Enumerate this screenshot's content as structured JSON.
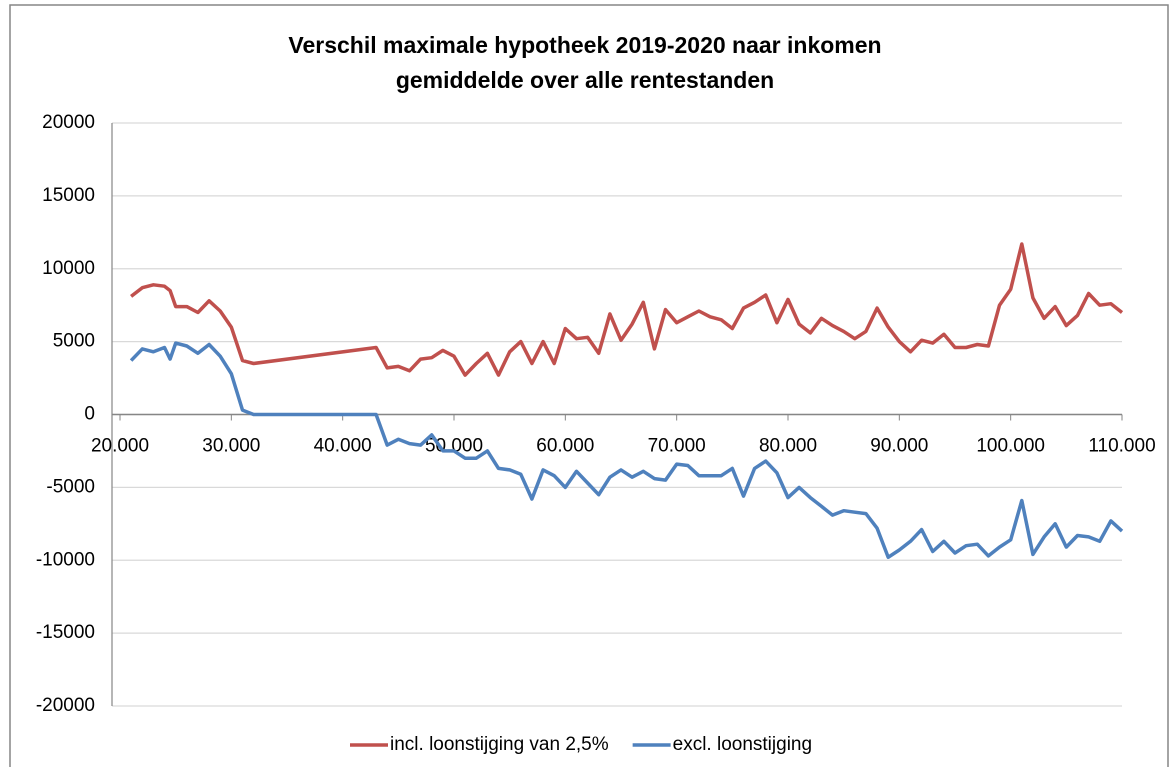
{
  "chart_data": {
    "type": "line",
    "title": [
      "Verschil maximale hypotheek 2019-2020 naar inkomen",
      "gemiddelde over alle rentestanden"
    ],
    "x": [
      21000,
      22000,
      23000,
      24000,
      24500,
      25000,
      26000,
      27000,
      28000,
      29000,
      30000,
      31000,
      32000,
      43000,
      44000,
      45000,
      46000,
      47000,
      48000,
      49000,
      50000,
      51000,
      52000,
      53000,
      54000,
      55000,
      56000,
      57000,
      58000,
      59000,
      60000,
      61000,
      62000,
      63000,
      64000,
      65000,
      66000,
      67000,
      68000,
      69000,
      70000,
      71000,
      72000,
      73000,
      74000,
      75000,
      76000,
      77000,
      78000,
      79000,
      80000,
      81000,
      82000,
      83000,
      84000,
      85000,
      86000,
      87000,
      88000,
      89000,
      90000,
      91000,
      92000,
      93000,
      94000,
      95000,
      96000,
      97000,
      98000,
      99000,
      100000,
      101000,
      102000,
      103000,
      104000,
      105000,
      106000,
      107000,
      108000,
      109000,
      110000
    ],
    "series": [
      {
        "name": "incl. loonstijging van 2,5%",
        "color": "#c0504d",
        "values": [
          8100,
          8700,
          8900,
          8800,
          8500,
          7400,
          7400,
          7000,
          7800,
          7100,
          6000,
          3700,
          3500,
          4600,
          3200,
          3300,
          3000,
          3800,
          3900,
          4400,
          4000,
          2700,
          3500,
          4200,
          2700,
          4300,
          5000,
          3500,
          5000,
          3500,
          5900,
          5200,
          5300,
          4200,
          6900,
          5100,
          6200,
          7700,
          4500,
          7200,
          6300,
          6700,
          7100,
          6700,
          6500,
          5900,
          7300,
          7700,
          8200,
          6300,
          7900,
          6200,
          5600,
          6600,
          6100,
          5700,
          5200,
          5700,
          7300,
          6000,
          5000,
          4300,
          5100,
          4900,
          5500,
          4600,
          4600,
          4800,
          4700,
          7500,
          8600,
          11700,
          8000,
          6600,
          7400,
          6100,
          6800,
          8300,
          7500,
          7600,
          7000
        ]
      },
      {
        "name": "excl. loonstijging",
        "color": "#4f81bd",
        "values": [
          3700,
          4500,
          4300,
          4600,
          3800,
          4900,
          4700,
          4200,
          4800,
          4000,
          2800,
          300,
          0,
          0,
          -2100,
          -1700,
          -2000,
          -2100,
          -1400,
          -2500,
          -2500,
          -3000,
          -3000,
          -2500,
          -3700,
          -3800,
          -4100,
          -5800,
          -3800,
          -4200,
          -5000,
          -3900,
          -4700,
          -5500,
          -4300,
          -3800,
          -4300,
          -3900,
          -4400,
          -4500,
          -3400,
          -3500,
          -4200,
          -4200,
          -4200,
          -3700,
          -5600,
          -3700,
          -3200,
          -4000,
          -5700,
          -5000,
          -5700,
          -6300,
          -6900,
          -6600,
          -6700,
          -6800,
          -7800,
          -9800,
          -9300,
          -8700,
          -7900,
          -9400,
          -8700,
          -9500,
          -9000,
          -8900,
          -9700,
          -9100,
          -8600,
          -5900,
          -9600,
          -8400,
          -7500,
          -9100,
          -8300,
          -8400,
          -8700,
          -7300,
          -8000
        ]
      }
    ],
    "xlim": [
      20000,
      110000
    ],
    "xticks": [
      {
        "value": 20000,
        "label": "20.000"
      },
      {
        "value": 30000,
        "label": "30.000"
      },
      {
        "value": 40000,
        "label": "40.000"
      },
      {
        "value": 50000,
        "label": "50.000"
      },
      {
        "value": 60000,
        "label": "60.000"
      },
      {
        "value": 70000,
        "label": "70.000"
      },
      {
        "value": 80000,
        "label": "80.000"
      },
      {
        "value": 90000,
        "label": "90.000"
      },
      {
        "value": 100000,
        "label": "100.000"
      },
      {
        "value": 110000,
        "label": "110.000"
      }
    ],
    "ylim": [
      -20000,
      20000
    ],
    "yticks": [
      -20000,
      -15000,
      -10000,
      -5000,
      0,
      5000,
      10000,
      15000,
      20000
    ],
    "grid": true,
    "legend": "bottom"
  }
}
